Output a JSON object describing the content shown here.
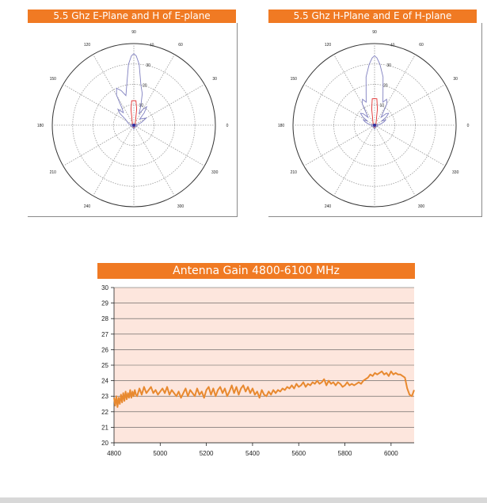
{
  "chart_data": [
    {
      "type": "polar",
      "title": "5.5 Ghz E-Plane and H of E-plane",
      "radial_ticks": [
        "10",
        "20",
        "30",
        "40"
      ],
      "angle_ticks": [
        "0",
        "30",
        "60",
        "90",
        "120",
        "150",
        "180",
        "210",
        "240",
        "270",
        "300",
        "330"
      ],
      "rmax": 40,
      "grid": true,
      "series": [
        {
          "color": "#8080c0",
          "points": [
            [
              0,
              0
            ],
            [
              10,
              2
            ],
            [
              20,
              4
            ],
            [
              30,
              7
            ],
            [
              40,
              5
            ],
            [
              45,
              4
            ],
            [
              50,
              8
            ],
            [
              55,
              11
            ],
            [
              60,
              9
            ],
            [
              65,
              6
            ],
            [
              70,
              10
            ],
            [
              75,
              16
            ],
            [
              80,
              20
            ],
            [
              85,
              30
            ],
            [
              88,
              34
            ],
            [
              90,
              35
            ],
            [
              92,
              34
            ],
            [
              95,
              30
            ],
            [
              100,
              20
            ],
            [
              105,
              15
            ],
            [
              110,
              18
            ],
            [
              115,
              20
            ],
            [
              120,
              17
            ],
            [
              125,
              10
            ],
            [
              130,
              8
            ],
            [
              135,
              11
            ],
            [
              140,
              9
            ],
            [
              145,
              5
            ],
            [
              150,
              4
            ],
            [
              160,
              3
            ],
            [
              170,
              2
            ],
            [
              180,
              0
            ],
            [
              190,
              2
            ],
            [
              210,
              1
            ],
            [
              240,
              1
            ],
            [
              270,
              2
            ],
            [
              300,
              1
            ],
            [
              330,
              1
            ],
            [
              350,
              2
            ]
          ]
        },
        {
          "color": "#e03030",
          "points": [
            [
              0,
              0.5
            ],
            [
              45,
              1
            ],
            [
              80,
              8
            ],
            [
              85,
              12
            ],
            [
              90,
              12
            ],
            [
              95,
              12
            ],
            [
              100,
              8
            ],
            [
              135,
              1
            ],
            [
              180,
              0.5
            ],
            [
              225,
              0.5
            ],
            [
              270,
              1
            ],
            [
              315,
              0.5
            ]
          ]
        }
      ]
    },
    {
      "type": "polar",
      "title": "5.5 Ghz H-Plane and E of H-plane",
      "radial_ticks": [
        "10",
        "20",
        "30",
        "40"
      ],
      "angle_ticks": [
        "0",
        "30",
        "60",
        "90",
        "120",
        "150",
        "180",
        "210",
        "240",
        "270",
        "300",
        "330"
      ],
      "rmax": 40,
      "grid": true,
      "series": [
        {
          "color": "#8080c0",
          "points": [
            [
              0,
              0
            ],
            [
              10,
              3
            ],
            [
              20,
              5
            ],
            [
              25,
              6
            ],
            [
              30,
              4
            ],
            [
              35,
              7
            ],
            [
              40,
              9
            ],
            [
              45,
              8
            ],
            [
              50,
              5
            ],
            [
              55,
              7
            ],
            [
              60,
              12
            ],
            [
              65,
              14
            ],
            [
              70,
              12
            ],
            [
              75,
              16
            ],
            [
              80,
              24
            ],
            [
              85,
              30
            ],
            [
              88,
              33
            ],
            [
              90,
              34
            ],
            [
              92,
              33
            ],
            [
              95,
              30
            ],
            [
              100,
              24
            ],
            [
              105,
              16
            ],
            [
              110,
              12
            ],
            [
              115,
              14
            ],
            [
              120,
              12
            ],
            [
              125,
              7
            ],
            [
              130,
              5
            ],
            [
              135,
              8
            ],
            [
              140,
              9
            ],
            [
              145,
              7
            ],
            [
              150,
              4
            ],
            [
              155,
              6
            ],
            [
              160,
              5
            ],
            [
              170,
              3
            ],
            [
              180,
              0
            ],
            [
              190,
              2
            ],
            [
              210,
              1
            ],
            [
              240,
              1
            ],
            [
              270,
              2
            ],
            [
              300,
              1
            ],
            [
              330,
              1
            ],
            [
              350,
              2
            ]
          ]
        },
        {
          "color": "#e03030",
          "points": [
            [
              0,
              0.5
            ],
            [
              45,
              1
            ],
            [
              80,
              8
            ],
            [
              85,
              13
            ],
            [
              90,
              13
            ],
            [
              95,
              13
            ],
            [
              100,
              8
            ],
            [
              135,
              1
            ],
            [
              180,
              0.5
            ],
            [
              225,
              0.5
            ],
            [
              270,
              1
            ],
            [
              315,
              0.5
            ]
          ]
        }
      ]
    },
    {
      "type": "line",
      "title": "Antenna Gain 4800-6100 MHz",
      "xlabel": "",
      "ylabel": "",
      "xlim": [
        4800,
        6100
      ],
      "ylim": [
        20,
        30
      ],
      "xticks": [
        "4800",
        "5000",
        "5200",
        "5400",
        "5600",
        "5800",
        "6000"
      ],
      "yticks": [
        "20",
        "21",
        "22",
        "23",
        "24",
        "25",
        "26",
        "27",
        "28",
        "29",
        "30"
      ],
      "grid": true,
      "series": [
        {
          "color": "#e8892f",
          "x": [
            4800,
            4805,
            4810,
            4815,
            4820,
            4825,
            4830,
            4835,
            4840,
            4845,
            4850,
            4855,
            4860,
            4865,
            4870,
            4875,
            4880,
            4885,
            4890,
            4895,
            4900,
            4910,
            4920,
            4930,
            4940,
            4950,
            4960,
            4970,
            4980,
            4990,
            5000,
            5010,
            5020,
            5030,
            5040,
            5050,
            5060,
            5070,
            5080,
            5090,
            5100,
            5110,
            5120,
            5130,
            5140,
            5150,
            5160,
            5170,
            5180,
            5190,
            5200,
            5210,
            5220,
            5230,
            5240,
            5250,
            5260,
            5270,
            5280,
            5290,
            5300,
            5310,
            5320,
            5330,
            5340,
            5350,
            5360,
            5370,
            5380,
            5390,
            5400,
            5410,
            5420,
            5430,
            5440,
            5450,
            5460,
            5470,
            5480,
            5490,
            5500,
            5510,
            5520,
            5530,
            5540,
            5550,
            5560,
            5570,
            5580,
            5590,
            5600,
            5610,
            5620,
            5630,
            5640,
            5650,
            5660,
            5670,
            5680,
            5690,
            5700,
            5710,
            5720,
            5730,
            5740,
            5750,
            5760,
            5770,
            5780,
            5790,
            5800,
            5810,
            5820,
            5830,
            5840,
            5850,
            5860,
            5870,
            5880,
            5890,
            5900,
            5910,
            5920,
            5930,
            5940,
            5950,
            5960,
            5970,
            5980,
            5990,
            6000,
            6010,
            6020,
            6030,
            6040,
            6050,
            6060,
            6070,
            6080,
            6090,
            6100
          ],
          "y": [
            22.9,
            22.4,
            23.0,
            22.3,
            22.9,
            22.5,
            23.1,
            22.6,
            23.2,
            22.7,
            23.3,
            22.8,
            23.2,
            22.9,
            23.4,
            22.9,
            23.3,
            23.0,
            23.4,
            23.1,
            23.0,
            23.5,
            23.1,
            23.6,
            23.2,
            23.4,
            23.6,
            23.2,
            23.4,
            23.1,
            23.3,
            23.5,
            23.2,
            23.6,
            23.1,
            23.4,
            23.2,
            23.0,
            23.3,
            22.9,
            23.2,
            23.5,
            23.0,
            23.4,
            23.2,
            23.0,
            23.5,
            23.1,
            23.3,
            22.9,
            23.4,
            23.6,
            23.1,
            23.5,
            23.0,
            23.4,
            23.6,
            23.2,
            23.5,
            23.0,
            23.3,
            23.7,
            23.2,
            23.6,
            23.1,
            23.5,
            23.7,
            23.3,
            23.6,
            23.2,
            23.5,
            23.1,
            23.3,
            22.9,
            23.4,
            23.1,
            23.0,
            23.3,
            23.1,
            23.4,
            23.2,
            23.4,
            23.3,
            23.5,
            23.4,
            23.6,
            23.5,
            23.7,
            23.5,
            23.8,
            23.6,
            23.7,
            23.9,
            23.6,
            23.8,
            23.7,
            23.9,
            23.8,
            24.0,
            23.8,
            23.9,
            24.1,
            23.7,
            24.0,
            23.8,
            23.9,
            23.7,
            23.9,
            23.8,
            23.6,
            23.7,
            23.9,
            23.7,
            23.8,
            23.7,
            23.8,
            23.9,
            23.8,
            24.0,
            24.1,
            24.2,
            24.4,
            24.3,
            24.5,
            24.4,
            24.5,
            24.6,
            24.4,
            24.5,
            24.3,
            24.6,
            24.4,
            24.5,
            24.4,
            24.4,
            24.3,
            24.2,
            23.5,
            23.1,
            23.0,
            23.4
          ]
        }
      ]
    }
  ]
}
